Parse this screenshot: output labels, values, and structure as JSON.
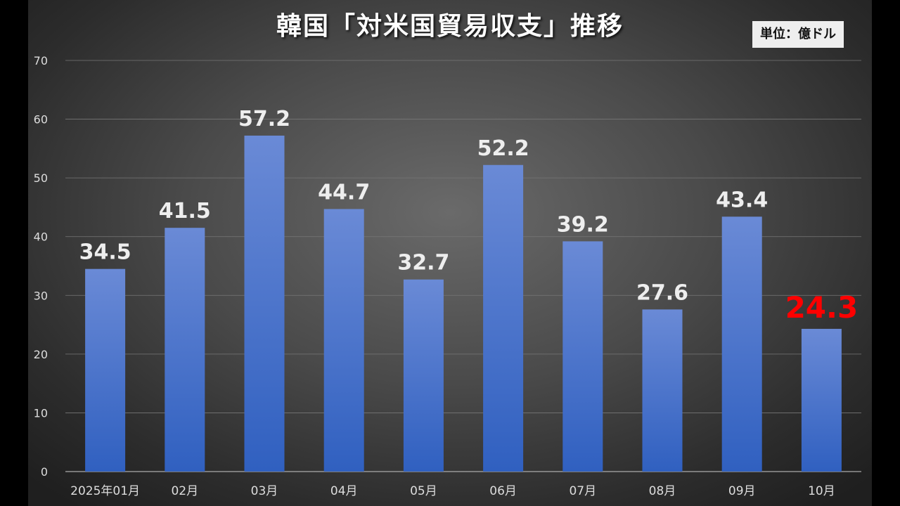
{
  "chart_data": {
    "type": "bar",
    "title": "韓国「対米国貿易収支」推移",
    "unit_label": "単位：億ドル",
    "categories": [
      "2025年01月",
      "02月",
      "03月",
      "04月",
      "05月",
      "06月",
      "07月",
      "08月",
      "09月",
      "10月"
    ],
    "values": [
      34.5,
      41.5,
      57.2,
      44.7,
      32.7,
      52.2,
      39.2,
      27.6,
      43.4,
      24.3
    ],
    "value_labels": [
      "34.5",
      "41.5",
      "57.2",
      "44.7",
      "32.7",
      "52.2",
      "39.2",
      "27.6",
      "43.4",
      "24.3"
    ],
    "highlight_index": 9,
    "ylim": [
      0,
      70
    ],
    "yticks": [
      "0",
      "10",
      "20",
      "30",
      "40",
      "50",
      "60",
      "70"
    ],
    "grid": true,
    "xlabel": "",
    "ylabel": "",
    "colors": {
      "bar_top": "#6a8ad6",
      "bar_bottom": "#3060c0",
      "label": "#eeeeee",
      "highlight_label": "#ff0000",
      "tick_label": "#dddddd",
      "grid": "#777777"
    }
  }
}
